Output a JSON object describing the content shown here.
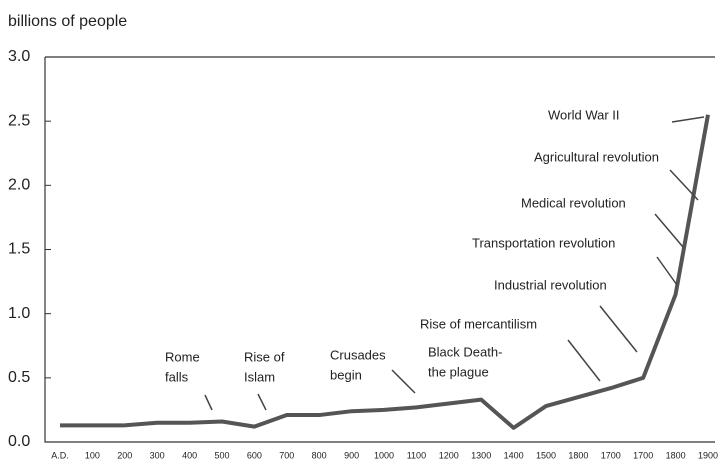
{
  "chart_data": {
    "type": "line",
    "y_label": "billions of people",
    "categories": [
      "A.D.",
      "100",
      "200",
      "300",
      "400",
      "500",
      "600",
      "700",
      "800",
      "900",
      "1000",
      "1100",
      "1200",
      "1300",
      "1400",
      "1500",
      "1800",
      "1700",
      "1700",
      "1800",
      "1900"
    ],
    "series": [
      {
        "color": "#555555",
        "values": [
          0.13,
          0.13,
          0.13,
          0.15,
          0.15,
          0.16,
          0.12,
          0.21,
          0.21,
          0.24,
          0.25,
          0.27,
          0.3,
          0.33,
          0.11,
          0.28,
          0.35,
          0.42,
          0.5,
          1.15,
          2.55
        ]
      }
    ],
    "ylim": [
      0,
      3
    ],
    "yticks": [
      {
        "value": 0,
        "label": "0.0"
      },
      0.5,
      {
        "value": 1,
        "label": "1.0"
      },
      1.5,
      {
        "value": 2,
        "label": "2.0"
      },
      2.5,
      {
        "value": 3,
        "label": "3.0"
      }
    ],
    "annotations": [
      [
        "World War II"
      ],
      [
        "Agricultural revolution"
      ],
      [
        "Medical revolution"
      ],
      [
        "Transportation revolution"
      ],
      [
        "Industrial revolution"
      ],
      [
        "Rise of mercantilism"
      ],
      [
        "Black Death-",
        "the plague"
      ],
      [
        "Crusades",
        "begin"
      ],
      [
        "Rise of",
        "Islam"
      ],
      [
        "Rome",
        "falls"
      ]
    ]
  }
}
